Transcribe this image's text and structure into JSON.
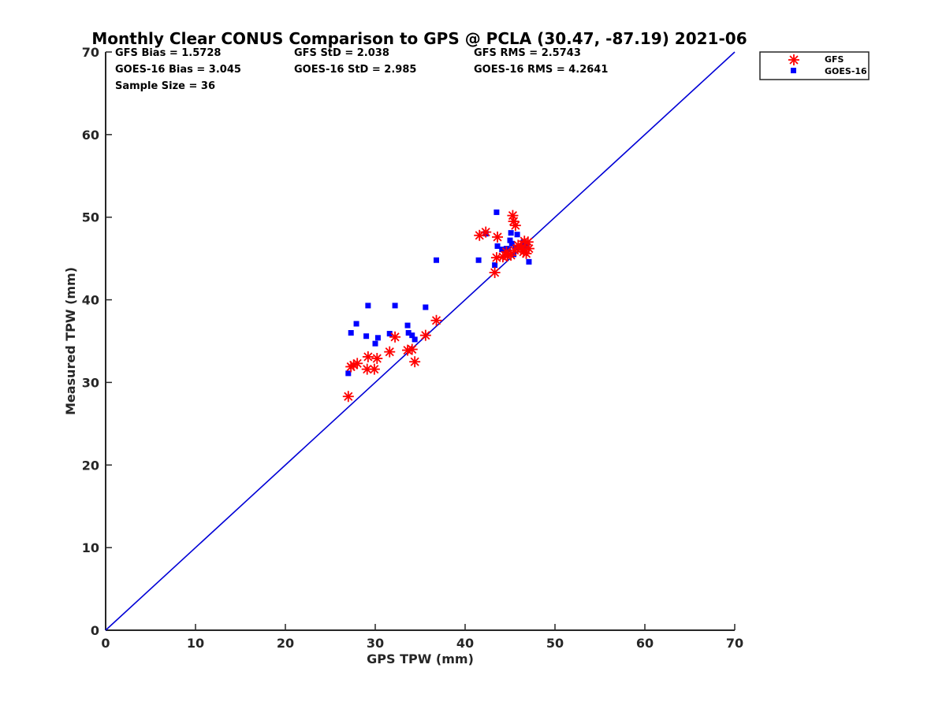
{
  "chart_data": {
    "type": "scatter",
    "title": "Monthly Clear CONUS Comparison to GPS @ PCLA (30.47, -87.19) 2021-06",
    "xlabel": "GPS TPW (mm)",
    "ylabel": "Measured TPW (mm)",
    "xlim": [
      0,
      70
    ],
    "ylim": [
      0,
      70
    ],
    "xticks": [
      "0",
      "10",
      "20",
      "30",
      "40",
      "50",
      "60",
      "70"
    ],
    "yticks": [
      "0",
      "10",
      "20",
      "30",
      "40",
      "50",
      "60",
      "70"
    ],
    "grid": false,
    "legend_position": "top-right",
    "reference_line": {
      "x": [
        0,
        70
      ],
      "y": [
        0,
        70
      ],
      "color": "#0000d6"
    },
    "stats": [
      "GFS Bias = 1.5728",
      "GFS StD = 2.038",
      "GFS RMS = 2.5743",
      "GOES-16 Bias = 3.045",
      "GOES-16 StD = 2.985",
      "GOES-16 RMS = 4.2641",
      "Sample Size = 36"
    ],
    "series": [
      {
        "name": "GFS",
        "marker": "asterisk",
        "color": "#ff0000",
        "points": [
          [
            27.0,
            28.3
          ],
          [
            27.3,
            31.9
          ],
          [
            27.6,
            32.1
          ],
          [
            28.0,
            32.3
          ],
          [
            29.1,
            31.6
          ],
          [
            29.2,
            33.1
          ],
          [
            29.9,
            31.6
          ],
          [
            30.2,
            32.9
          ],
          [
            31.6,
            33.7
          ],
          [
            32.2,
            35.5
          ],
          [
            33.6,
            33.9
          ],
          [
            34.1,
            34.0
          ],
          [
            34.4,
            32.5
          ],
          [
            35.6,
            35.7
          ],
          [
            36.8,
            37.5
          ],
          [
            41.6,
            47.8
          ],
          [
            42.3,
            48.2
          ],
          [
            43.3,
            43.3
          ],
          [
            43.5,
            45.1
          ],
          [
            43.6,
            47.6
          ],
          [
            44.2,
            45.2
          ],
          [
            44.7,
            45.3
          ],
          [
            45.1,
            45.4
          ],
          [
            45.3,
            50.2
          ],
          [
            45.4,
            49.5
          ],
          [
            45.6,
            49.0
          ],
          [
            45.5,
            46.0
          ],
          [
            45.9,
            46.6
          ],
          [
            46.3,
            46.4
          ],
          [
            46.5,
            45.8
          ],
          [
            46.6,
            47.1
          ],
          [
            46.8,
            45.6
          ],
          [
            47.0,
            47.0
          ],
          [
            47.1,
            46.2
          ],
          [
            46.2,
            46.2
          ],
          [
            44.6,
            45.8
          ]
        ]
      },
      {
        "name": "GOES-16",
        "marker": "square",
        "color": "#0000ff",
        "points": [
          [
            27.0,
            31.1
          ],
          [
            27.3,
            36.0
          ],
          [
            27.9,
            37.1
          ],
          [
            29.0,
            35.6
          ],
          [
            29.2,
            39.3
          ],
          [
            30.0,
            34.7
          ],
          [
            30.3,
            35.4
          ],
          [
            31.6,
            35.9
          ],
          [
            32.2,
            39.3
          ],
          [
            33.6,
            36.9
          ],
          [
            33.7,
            36.0
          ],
          [
            34.1,
            35.7
          ],
          [
            34.4,
            35.2
          ],
          [
            35.6,
            39.1
          ],
          [
            36.8,
            44.8
          ],
          [
            41.5,
            44.8
          ],
          [
            42.3,
            48.0
          ],
          [
            43.3,
            44.2
          ],
          [
            43.5,
            50.6
          ],
          [
            43.6,
            46.5
          ],
          [
            44.1,
            46.1
          ],
          [
            44.4,
            46.0
          ],
          [
            44.8,
            46.1
          ],
          [
            45.0,
            47.2
          ],
          [
            45.1,
            48.1
          ],
          [
            45.2,
            46.8
          ],
          [
            45.4,
            45.5
          ],
          [
            45.6,
            46.3
          ],
          [
            45.8,
            47.9
          ],
          [
            46.0,
            46.5
          ],
          [
            46.3,
            46.4
          ],
          [
            46.5,
            47.0
          ],
          [
            46.7,
            46.6
          ],
          [
            46.9,
            46.8
          ],
          [
            47.1,
            44.6
          ],
          [
            44.6,
            46.2
          ]
        ]
      }
    ]
  }
}
